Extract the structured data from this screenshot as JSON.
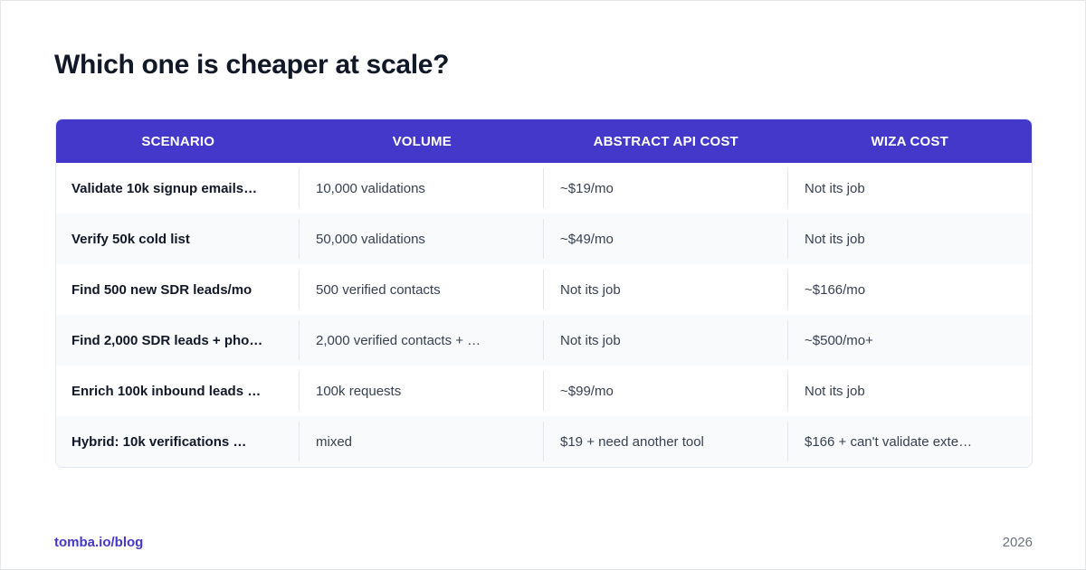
{
  "header": {
    "title": "Which one is cheaper at scale?"
  },
  "table": {
    "columns": [
      "SCENARIO",
      "VOLUME",
      "ABSTRACT API COST",
      "WIZA COST"
    ],
    "rows": [
      [
        "Validate 10k signup emails…",
        "10,000 validations",
        "~$19/mo",
        "Not its job"
      ],
      [
        "Verify 50k cold list",
        "50,000 validations",
        "~$49/mo",
        "Not its job"
      ],
      [
        "Find 500 new SDR leads/mo",
        "500 verified contacts",
        "Not its job",
        "~$166/mo"
      ],
      [
        "Find 2,000 SDR leads + pho…",
        "2,000 verified contacts + …",
        "Not its job",
        "~$500/mo+"
      ],
      [
        "Enrich 100k inbound leads …",
        "100k requests",
        "~$99/mo",
        "Not its job"
      ],
      [
        "Hybrid: 10k verifications …",
        "mixed",
        "$19 + need another tool",
        "$166 + can't validate exte…"
      ]
    ]
  },
  "footer": {
    "source": "tomba.io/blog",
    "year": "2026"
  }
}
